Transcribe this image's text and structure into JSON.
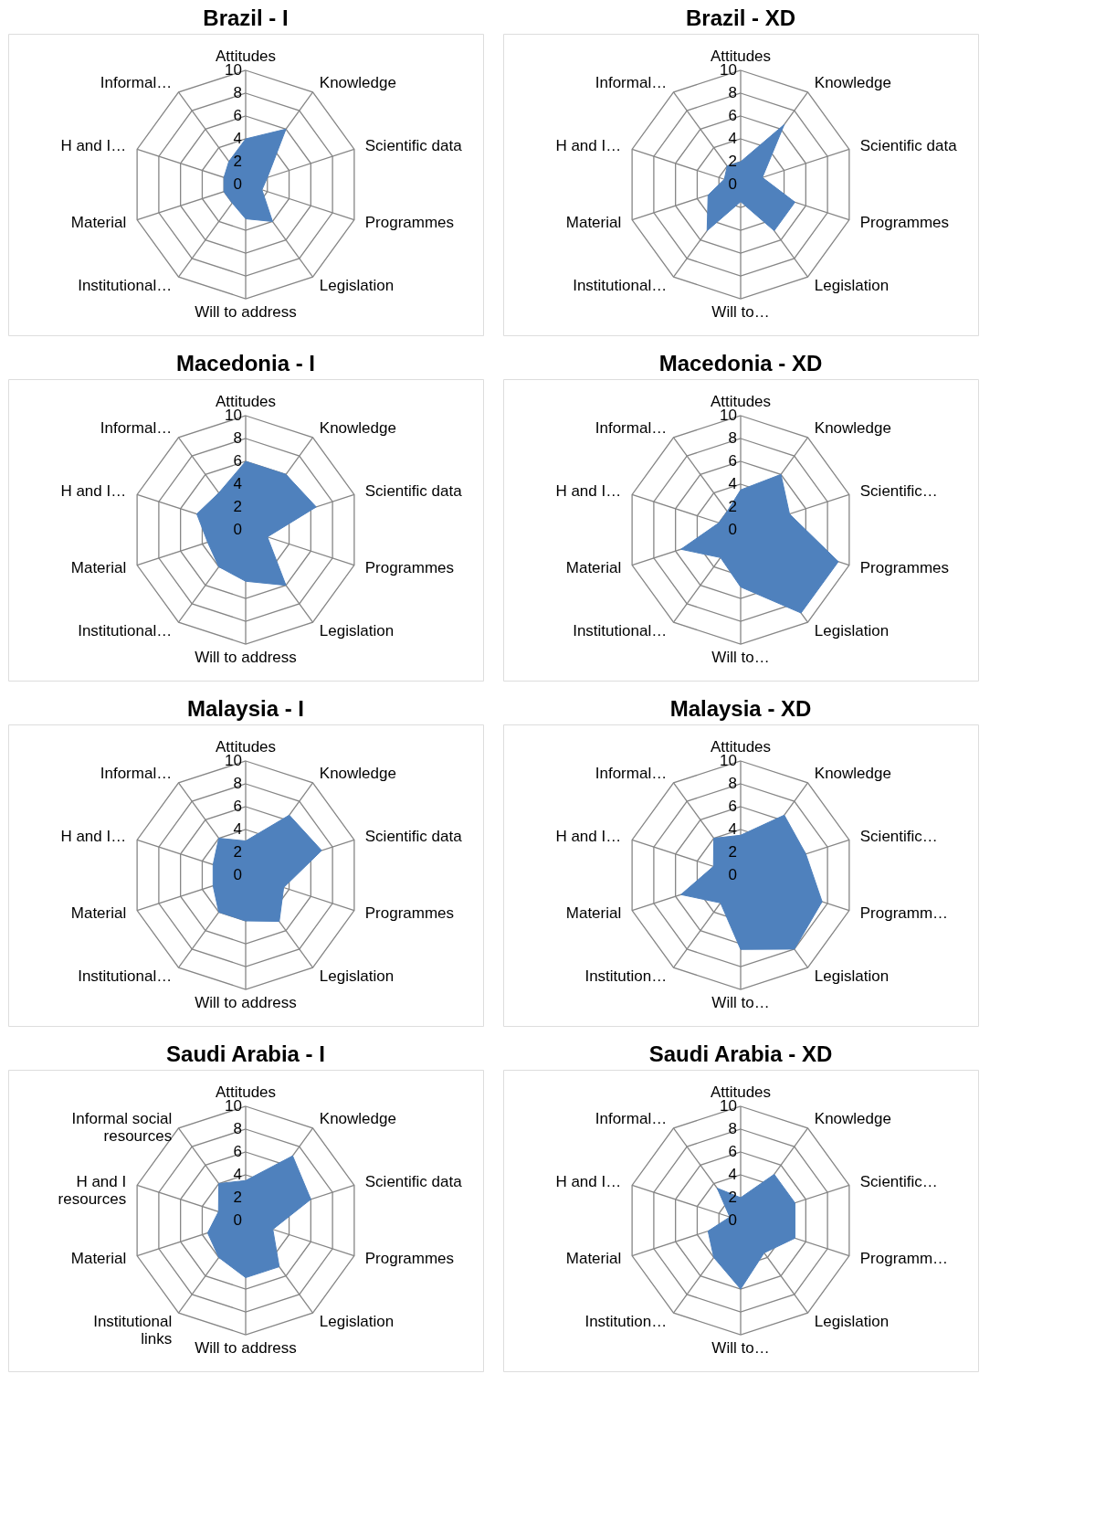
{
  "chart_data": [
    {
      "type": "radar",
      "title": "Brazil - I",
      "categories": [
        "Attitudes",
        "Knowledge",
        "Scientific data",
        "Programmes",
        "Legislation",
        "Will to address",
        "Institutional…",
        "Material",
        "H and I…",
        "Informal…"
      ],
      "series": [
        {
          "color": "#4f81bd",
          "values": [
            4,
            6,
            2,
            1.5,
            4,
            3,
            2,
            2,
            2,
            2.5
          ]
        }
      ],
      "ylim": [
        0,
        10
      ],
      "yticks": [
        0,
        2,
        4,
        6,
        8,
        10
      ],
      "grid": true
    },
    {
      "type": "radar",
      "title": "Brazil - XD",
      "categories": [
        "Attitudes",
        "Knowledge",
        "Scientific data",
        "Programmes",
        "Legislation",
        "Will to…",
        "Institutional…",
        "Material",
        "H and I…",
        "Informal…"
      ],
      "series": [
        {
          "color": "#4f81bd",
          "values": [
            2,
            6.5,
            2,
            5,
            5,
            1.5,
            5,
            3,
            1.5,
            2
          ]
        }
      ],
      "ylim": [
        0,
        10
      ],
      "yticks": [
        0,
        2,
        4,
        6,
        8,
        10
      ],
      "grid": true
    },
    {
      "type": "radar",
      "title": "Macedonia - I",
      "categories": [
        "Attitudes",
        "Knowledge",
        "Scientific data",
        "Programmes",
        "Legislation",
        "Will to address",
        "Institutional…",
        "Material",
        "H and I…",
        "Informal…"
      ],
      "series": [
        {
          "color": "#4f81bd",
          "values": [
            6,
            6,
            6.5,
            2,
            6,
            4.5,
            4,
            3.5,
            4.5,
            4
          ]
        }
      ],
      "ylim": [
        0,
        10
      ],
      "yticks": [
        0,
        2,
        4,
        6,
        8,
        10
      ],
      "grid": true
    },
    {
      "type": "radar",
      "title": "Macedonia - XD",
      "categories": [
        "Attitudes",
        "Knowledge",
        "Scientific…",
        "Programmes",
        "Legislation",
        "Will to…",
        "Institutional…",
        "Material",
        "H and I…",
        "Informal…"
      ],
      "series": [
        {
          "color": "#4f81bd",
          "values": [
            3.5,
            6,
            4.5,
            9,
            9,
            5,
            3,
            5.5,
            2,
            2
          ]
        }
      ],
      "ylim": [
        0,
        10
      ],
      "yticks": [
        0,
        2,
        4,
        6,
        8,
        10
      ],
      "grid": true
    },
    {
      "type": "radar",
      "title": "Malaysia - I",
      "categories": [
        "Attitudes",
        "Knowledge",
        "Scientific data",
        "Programmes",
        "Legislation",
        "Will to address",
        "Institutional…",
        "Material",
        "H and I…",
        "Informal…"
      ],
      "series": [
        {
          "color": "#4f81bd",
          "values": [
            3,
            6.5,
            7,
            3.5,
            5,
            4,
            4,
            3,
            3,
            4
          ]
        }
      ],
      "ylim": [
        0,
        10
      ],
      "yticks": [
        0,
        2,
        4,
        6,
        8,
        10
      ],
      "grid": true
    },
    {
      "type": "radar",
      "title": "Malaysia - XD",
      "categories": [
        "Attitudes",
        "Knowledge",
        "Scientific…",
        "Programm…",
        "Legislation",
        "Will to…",
        "Institution…",
        "Material",
        "H and I…",
        "Informal…"
      ],
      "series": [
        {
          "color": "#4f81bd",
          "values": [
            3.5,
            6.5,
            6,
            7.5,
            8,
            6.5,
            3,
            5.5,
            2.5,
            4
          ]
        }
      ],
      "ylim": [
        0,
        10
      ],
      "yticks": [
        0,
        2,
        4,
        6,
        8,
        10
      ],
      "grid": true
    },
    {
      "type": "radar",
      "title": "Saudi Arabia - I",
      "categories": [
        "Attitudes",
        "Knowledge",
        "Scientific data",
        "Programmes",
        "Legislation",
        "Will to address",
        "Institutional links",
        "Material",
        "H and I resources",
        "Informal social resources"
      ],
      "series": [
        {
          "color": "#4f81bd",
          "values": [
            3.5,
            7,
            6,
            2.5,
            5,
            5,
            4,
            3.5,
            2.5,
            4
          ]
        }
      ],
      "ylim": [
        0,
        10
      ],
      "yticks": [
        0,
        2,
        4,
        6,
        8,
        10
      ],
      "grid": true
    },
    {
      "type": "radar",
      "title": "Saudi Arabia - XD",
      "categories": [
        "Attitudes",
        "Knowledge",
        "Scientific…",
        "Programm…",
        "Legislation",
        "Will to…",
        "Institution…",
        "Material",
        "H and I…",
        "Informal…"
      ],
      "series": [
        {
          "color": "#4f81bd",
          "values": [
            2,
            5,
            5,
            5,
            3.5,
            6,
            4,
            3,
            1,
            3.5
          ]
        }
      ],
      "ylim": [
        0,
        10
      ],
      "yticks": [
        0,
        2,
        4,
        6,
        8,
        10
      ],
      "grid": true
    }
  ]
}
